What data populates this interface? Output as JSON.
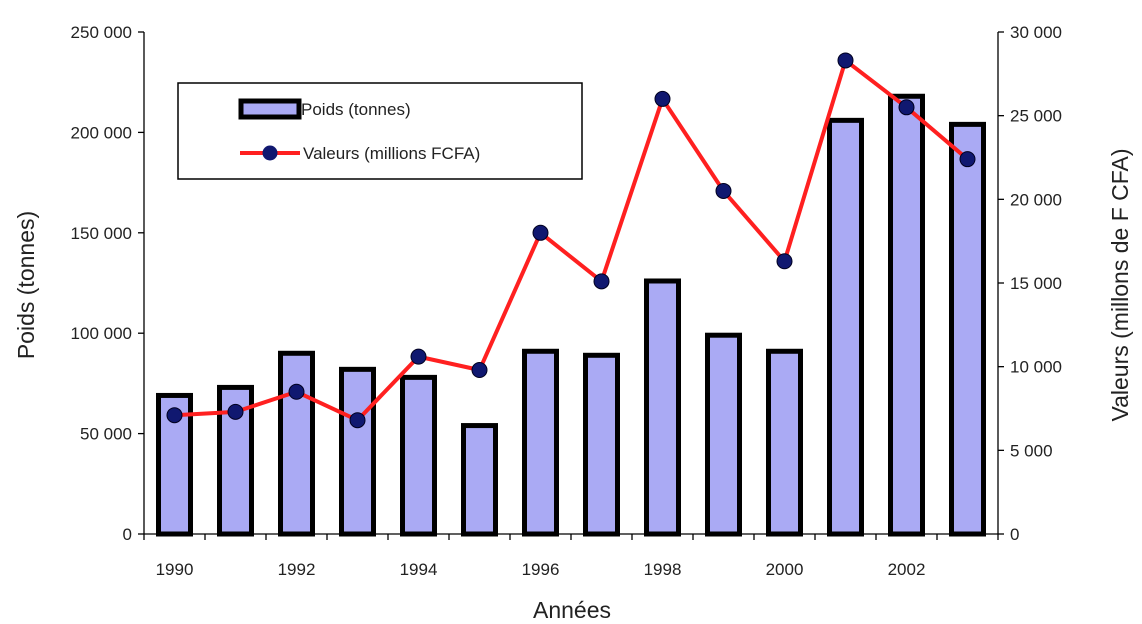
{
  "chart_data": {
    "type": "bar",
    "categories": [
      "1990",
      "1991",
      "1992",
      "1993",
      "1994",
      "1995",
      "1996",
      "1997",
      "1998",
      "1999",
      "2000",
      "2001",
      "2002",
      "2003"
    ],
    "x_tick_labels": [
      "1990",
      "1992",
      "1994",
      "1996",
      "1998",
      "2000",
      "2002"
    ],
    "xlabel": "Années",
    "ylabel_left": "Poids (tonnes)",
    "ylabel_right": "Valeurs (millons de F CFA)",
    "ylim_left": [
      0,
      250000
    ],
    "ylim_right": [
      0,
      30000
    ],
    "yticks_left": [
      "0",
      "50 000",
      "100 000",
      "150 000",
      "200 000",
      "250 000"
    ],
    "yticks_right": [
      "0",
      "5 000",
      "10 000",
      "15 000",
      "20 000",
      "25 000",
      "30 000"
    ],
    "grid": false,
    "legend_position": "top-left",
    "series": [
      {
        "name": "Poids (tonnes)",
        "type": "bar",
        "axis": "left",
        "color": "#aaaaf4",
        "values": [
          69000,
          73000,
          90000,
          82000,
          78000,
          54000,
          91000,
          89000,
          126000,
          99000,
          91000,
          206000,
          218000,
          204000
        ]
      },
      {
        "name": "Valeurs (millions FCFA)",
        "type": "line",
        "axis": "right",
        "color": "#ff2020",
        "marker_color": "#101870",
        "values": [
          7100,
          7300,
          8500,
          6800,
          10600,
          9800,
          18000,
          15100,
          26000,
          20500,
          16300,
          28300,
          25500,
          22400
        ]
      }
    ]
  }
}
